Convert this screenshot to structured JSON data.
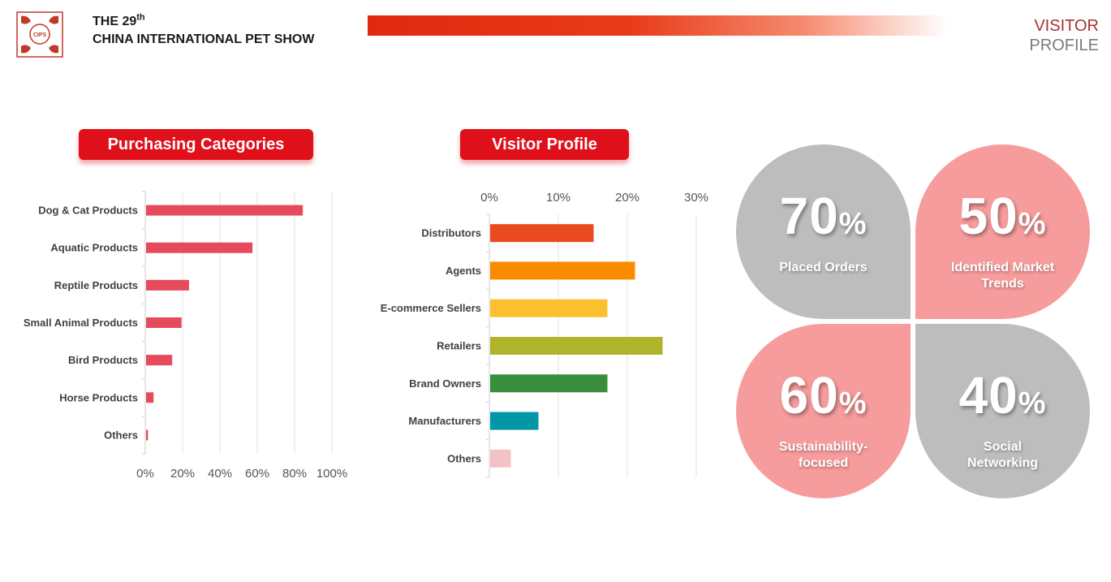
{
  "header": {
    "title_prefix": "THE 29",
    "title_sup": "th",
    "title_line2": "CHINA INTERNATIONAL PET SHOW",
    "page_title_1": "VISITOR",
    "page_title_2": "PROFILE",
    "logo_text": "CIPS",
    "accent": "#e0101a"
  },
  "charts": {
    "purchasing_title": "Purchasing Categories",
    "visitor_title": "Visitor Profile"
  },
  "chart_data": [
    {
      "type": "bar",
      "orientation": "horizontal",
      "categories": [
        "Dog & Cat Products",
        "Aquatic Products",
        "Reptile Products",
        "Small Animal Products",
        "Bird Products",
        "Horse Products",
        "Others"
      ],
      "values": [
        84,
        57,
        23,
        19,
        14,
        4,
        1
      ],
      "xlim": [
        0,
        100
      ],
      "xticks": [
        "0%",
        "20%",
        "40%",
        "60%",
        "80%",
        "100%"
      ],
      "color": "#e54b5c",
      "grid": true,
      "axis_position": "bottom"
    },
    {
      "type": "bar",
      "orientation": "horizontal",
      "categories": [
        "Distributors",
        "Agents",
        "E-commerce Sellers",
        "Retailers",
        "Brand Owners",
        "Manufacturers",
        "Others"
      ],
      "values": [
        15,
        21,
        17,
        25,
        17,
        7,
        3
      ],
      "colors": [
        "#e84b1e",
        "#fb8c00",
        "#fbc02d",
        "#afb42b",
        "#388e3c",
        "#0097a7",
        "#f4c2c6"
      ],
      "xlim": [
        0,
        30
      ],
      "xticks": [
        "0%",
        "10%",
        "20%",
        "30%"
      ],
      "grid": true,
      "axis_position": "top"
    }
  ],
  "stats": [
    {
      "value": "70",
      "unit": "%",
      "label": "Placed Orders",
      "color": "#bdbdbd"
    },
    {
      "value": "50",
      "unit": "%",
      "label": "Identified Market Trends",
      "color": "#f79c9c"
    },
    {
      "value": "60",
      "unit": "%",
      "label": "Sustainability-focused",
      "color": "#f79c9c"
    },
    {
      "value": "40",
      "unit": "%",
      "label": "Social Networking",
      "color": "#bdbdbd"
    }
  ]
}
